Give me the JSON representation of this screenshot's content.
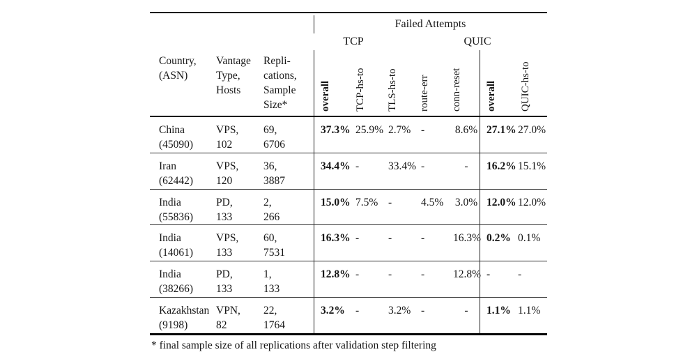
{
  "table": {
    "group_header": "Failed Attempts",
    "tcp_group": "TCP",
    "quic_group": "QUIC",
    "header": {
      "country": "Country,\n(ASN)",
      "vantage": "Vantage\nType,\nHosts",
      "replications": "Repli-\ncations,\nSample\nSize*",
      "tcp_overall": "overall",
      "tcp_hs_to": "TCP-hs-to",
      "tls_hs_to": "TLS-hs-to",
      "route_err": "route-err",
      "conn_reset": "conn-reset",
      "quic_overall": "overall",
      "quic_hs_to": "QUIC-hs-to"
    },
    "rows": [
      {
        "country": "China\n(45090)",
        "vantage": "VPS,\n102",
        "replications": "69,\n6706",
        "tcp_overall": "37.3%",
        "tcp_hs_to": "25.9%",
        "tls_hs_to": "2.7%",
        "route_err": "-",
        "conn_reset": "8.6%",
        "quic_overall": "27.1%",
        "quic_hs_to": "27.0%"
      },
      {
        "country": "Iran\n(62442)",
        "vantage": "VPS,\n120",
        "replications": "36,\n3887",
        "tcp_overall": "34.4%",
        "tcp_hs_to": "-",
        "tls_hs_to": "33.4%",
        "route_err": "-",
        "conn_reset": "-",
        "quic_overall": "16.2%",
        "quic_hs_to": "15.1%"
      },
      {
        "country": "India\n(55836)",
        "vantage": "PD,\n133",
        "replications": "2,\n266",
        "tcp_overall": "15.0%",
        "tcp_hs_to": "7.5%",
        "tls_hs_to": "-",
        "route_err": "4.5%",
        "conn_reset": "3.0%",
        "quic_overall": "12.0%",
        "quic_hs_to": "12.0%"
      },
      {
        "country": "India\n(14061)",
        "vantage": "VPS,\n133",
        "replications": "60,\n7531",
        "tcp_overall": "16.3%",
        "tcp_hs_to": "-",
        "tls_hs_to": "-",
        "route_err": "-",
        "conn_reset": "16.3%",
        "quic_overall": "0.2%",
        "quic_hs_to": "0.1%"
      },
      {
        "country": "India\n(38266)",
        "vantage": "PD,\n133",
        "replications": "1,\n133",
        "tcp_overall": "12.8%",
        "tcp_hs_to": "-",
        "tls_hs_to": "-",
        "route_err": "-",
        "conn_reset": "12.8%",
        "quic_overall": "-",
        "quic_hs_to": "-"
      },
      {
        "country": "Kazakhstan\n(9198)",
        "vantage": "VPN,\n82",
        "replications": "22,\n1764",
        "tcp_overall": "3.2%",
        "tcp_hs_to": "-",
        "tls_hs_to": "3.2%",
        "route_err": "-",
        "conn_reset": "-",
        "quic_overall": "1.1%",
        "quic_hs_to": "1.1%"
      }
    ]
  },
  "footnote": "* final sample size of all replications after validation step filtering"
}
